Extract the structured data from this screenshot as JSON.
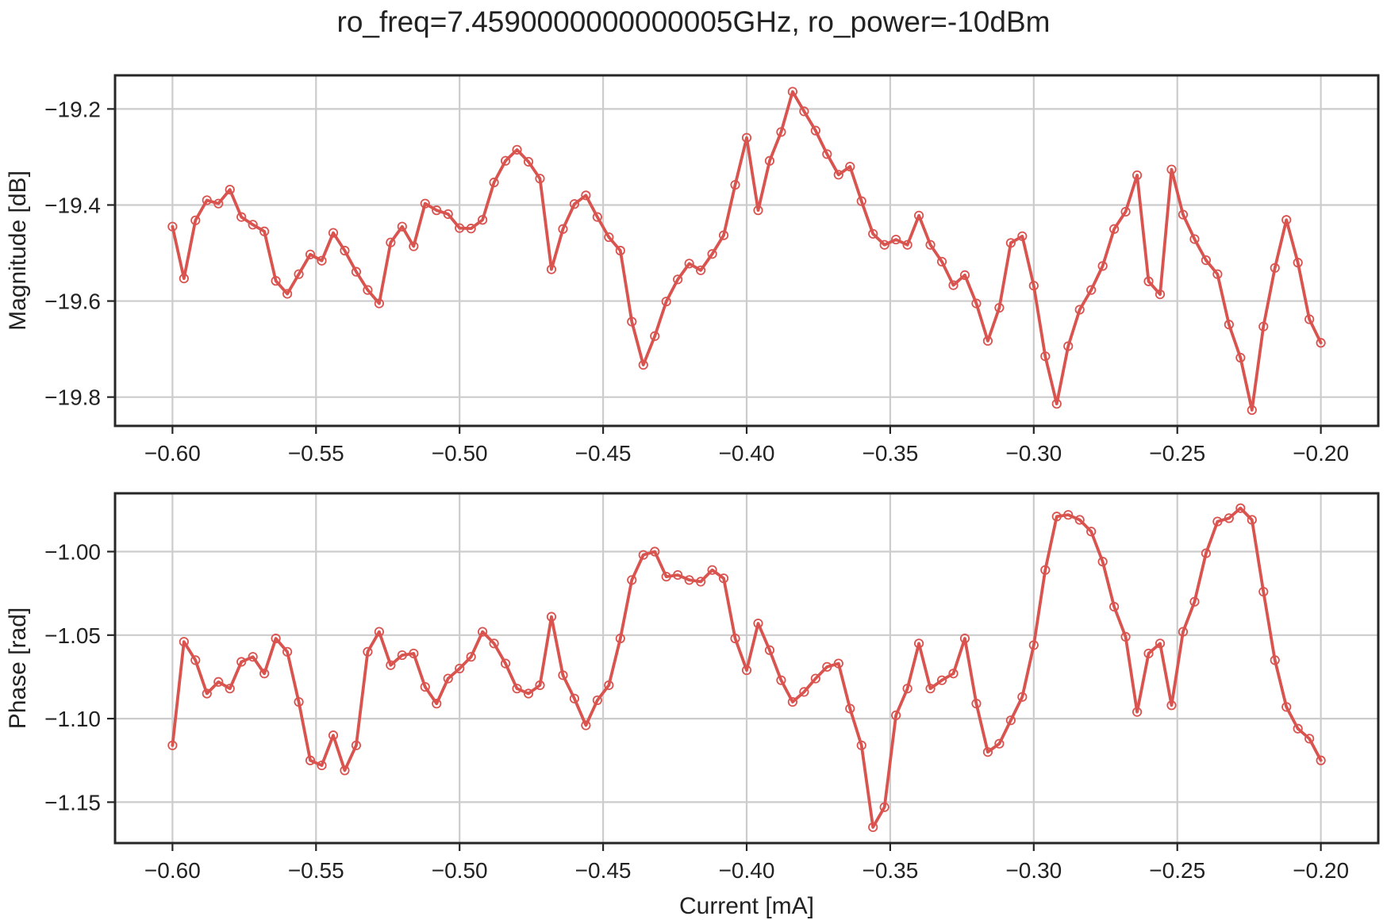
{
  "chart_data": {
    "title": "ro_freq=7.4590000000000005GHz, ro_power=-10dBm",
    "color": "#d9534f",
    "x": [
      -0.6,
      -0.596,
      -0.592,
      -0.588,
      -0.584,
      -0.58,
      -0.576,
      -0.572,
      -0.568,
      -0.564,
      -0.56,
      -0.556,
      -0.552,
      -0.548,
      -0.544,
      -0.54,
      -0.536,
      -0.532,
      -0.528,
      -0.524,
      -0.52,
      -0.516,
      -0.512,
      -0.508,
      -0.504,
      -0.5,
      -0.496,
      -0.492,
      -0.488,
      -0.484,
      -0.48,
      -0.476,
      -0.472,
      -0.468,
      -0.464,
      -0.46,
      -0.456,
      -0.452,
      -0.448,
      -0.444,
      -0.44,
      -0.436,
      -0.432,
      -0.428,
      -0.424,
      -0.42,
      -0.416,
      -0.412,
      -0.408,
      -0.404,
      -0.4,
      -0.396,
      -0.392,
      -0.388,
      -0.384,
      -0.38,
      -0.376,
      -0.372,
      -0.368,
      -0.364,
      -0.36,
      -0.356,
      -0.352,
      -0.348,
      -0.344,
      -0.34,
      -0.336,
      -0.332,
      -0.328,
      -0.324,
      -0.32,
      -0.316,
      -0.312,
      -0.308,
      -0.304,
      -0.3,
      -0.296,
      -0.292,
      -0.288,
      -0.284,
      -0.28,
      -0.276,
      -0.272,
      -0.268,
      -0.264,
      -0.26,
      -0.256,
      -0.252,
      -0.248,
      -0.244,
      -0.24,
      -0.236,
      -0.232,
      -0.228,
      -0.224,
      -0.22,
      -0.216,
      -0.212,
      -0.208,
      -0.204,
      -0.2
    ],
    "panels": [
      {
        "type": "line",
        "ylabel": "Magnitude [dB]",
        "xlabel": "",
        "xlim": [
          -0.62,
          -0.18
        ],
        "ylim": [
          -19.86,
          -19.13
        ],
        "xticks": [
          -0.6,
          -0.55,
          -0.5,
          -0.45,
          -0.4,
          -0.35,
          -0.3,
          -0.25,
          -0.2
        ],
        "xtick_labels": [
          "−0.60",
          "−0.55",
          "−0.50",
          "−0.45",
          "−0.40",
          "−0.35",
          "−0.30",
          "−0.25",
          "−0.20"
        ],
        "yticks": [
          -19.2,
          -19.4,
          -19.6,
          -19.8
        ],
        "ytick_labels": [
          "−19.2",
          "−19.4",
          "−19.6",
          "−19.8"
        ],
        "grid": true,
        "values": [
          -19.445,
          -19.553,
          -19.432,
          -19.39,
          -19.397,
          -19.368,
          -19.425,
          -19.441,
          -19.455,
          -19.558,
          -19.585,
          -19.544,
          -19.503,
          -19.516,
          -19.458,
          -19.495,
          -19.539,
          -19.577,
          -19.605,
          -19.478,
          -19.445,
          -19.486,
          -19.397,
          -19.411,
          -19.419,
          -19.448,
          -19.449,
          -19.431,
          -19.353,
          -19.308,
          -19.285,
          -19.31,
          -19.345,
          -19.534,
          -19.45,
          -19.398,
          -19.38,
          -19.425,
          -19.467,
          -19.495,
          -19.643,
          -19.733,
          -19.673,
          -19.601,
          -19.555,
          -19.522,
          -19.536,
          -19.502,
          -19.463,
          -19.358,
          -19.26,
          -19.411,
          -19.308,
          -19.248,
          -19.164,
          -19.205,
          -19.245,
          -19.294,
          -19.337,
          -19.32,
          -19.392,
          -19.46,
          -19.483,
          -19.472,
          -19.483,
          -19.422,
          -19.483,
          -19.518,
          -19.567,
          -19.546,
          -19.605,
          -19.683,
          -19.614,
          -19.479,
          -19.465,
          -19.568,
          -19.715,
          -19.814,
          -19.694,
          -19.618,
          -19.577,
          -19.527,
          -19.45,
          -19.414,
          -19.338,
          -19.559,
          -19.586,
          -19.326,
          -19.42,
          -19.471,
          -19.515,
          -19.544,
          -19.649,
          -19.718,
          -19.827,
          -19.653,
          -19.531,
          -19.431,
          -19.52,
          -19.638,
          -19.687
        ]
      },
      {
        "type": "line",
        "ylabel": "Phase [rad]",
        "xlabel": "Current [mA]",
        "xlim": [
          -0.62,
          -0.18
        ],
        "ylim": [
          -1.1745,
          -0.9651
        ],
        "xticks": [
          -0.6,
          -0.55,
          -0.5,
          -0.45,
          -0.4,
          -0.35,
          -0.3,
          -0.25,
          -0.2
        ],
        "xtick_labels": [
          "−0.60",
          "−0.55",
          "−0.50",
          "−0.45",
          "−0.40",
          "−0.35",
          "−0.30",
          "−0.25",
          "−0.20"
        ],
        "yticks": [
          -1.0,
          -1.05,
          -1.1,
          -1.15
        ],
        "ytick_labels": [
          "−1.00",
          "−1.05",
          "−1.10",
          "−1.15"
        ],
        "grid": true,
        "values": [
          -1.116,
          -1.054,
          -1.065,
          -1.085,
          -1.078,
          -1.082,
          -1.066,
          -1.063,
          -1.073,
          -1.052,
          -1.06,
          -1.09,
          -1.125,
          -1.128,
          -1.11,
          -1.131,
          -1.116,
          -1.06,
          -1.048,
          -1.068,
          -1.062,
          -1.061,
          -1.081,
          -1.091,
          -1.076,
          -1.07,
          -1.063,
          -1.048,
          -1.055,
          -1.067,
          -1.082,
          -1.085,
          -1.08,
          -1.039,
          -1.074,
          -1.088,
          -1.104,
          -1.089,
          -1.08,
          -1.052,
          -1.017,
          -1.002,
          -1.0,
          -1.015,
          -1.014,
          -1.017,
          -1.018,
          -1.011,
          -1.016,
          -1.052,
          -1.071,
          -1.043,
          -1.059,
          -1.077,
          -1.09,
          -1.084,
          -1.076,
          -1.069,
          -1.067,
          -1.094,
          -1.116,
          -1.165,
          -1.153,
          -1.098,
          -1.082,
          -1.055,
          -1.082,
          -1.077,
          -1.073,
          -1.052,
          -1.091,
          -1.12,
          -1.115,
          -1.101,
          -1.087,
          -1.056,
          -1.011,
          -0.979,
          -0.978,
          -0.981,
          -0.988,
          -1.006,
          -1.033,
          -1.051,
          -1.096,
          -1.061,
          -1.055,
          -1.092,
          -1.048,
          -1.03,
          -1.001,
          -0.982,
          -0.98,
          -0.974,
          -0.981,
          -1.024,
          -1.065,
          -1.093,
          -1.106,
          -1.112,
          -1.125
        ]
      }
    ]
  }
}
